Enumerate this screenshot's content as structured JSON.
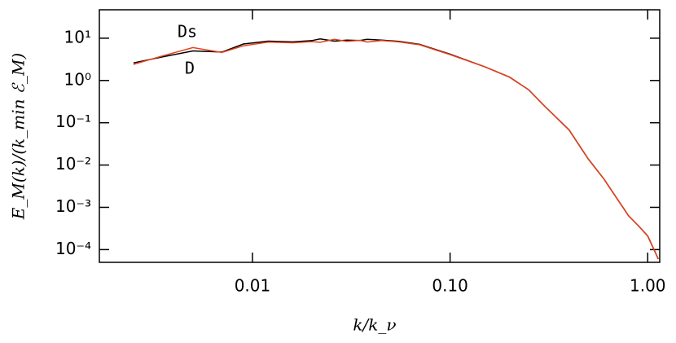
{
  "chart_data": {
    "type": "line",
    "xlabel": "k/k_ν",
    "ylabel": "E_M(k)/(k_min ℰ_M)",
    "log_x": true,
    "log_y": true,
    "xlim": [
      0.00168,
      1.15
    ],
    "ylim": [
      5e-05,
      47
    ],
    "xticks": [
      0.01,
      {
        "value": 0.1,
        "label": "0.10"
      },
      {
        "value": 1,
        "label": "1.00"
      }
    ],
    "yticks": [
      {
        "value": 10,
        "label": "10¹"
      },
      {
        "value": 1,
        "label": "10⁰"
      },
      {
        "value": 0.1,
        "label": "10⁻¹"
      },
      {
        "value": 0.01,
        "label": "10⁻²"
      },
      {
        "value": 0.001,
        "label": "10⁻³"
      },
      {
        "value": 0.0001,
        "label": "10⁻⁴"
      }
    ],
    "x": [
      0.0025,
      0.0035,
      0.005,
      0.007,
      0.009,
      0.012,
      0.016,
      0.02,
      0.022,
      0.026,
      0.03,
      0.035,
      0.038,
      0.045,
      0.055,
      0.07,
      0.1,
      0.15,
      0.2,
      0.25,
      0.3,
      0.4,
      0.5,
      0.6,
      0.7,
      0.8,
      0.9,
      1.0,
      1.1,
      1.13
    ],
    "series": [
      {
        "name": "D",
        "color": "#000000",
        "values": [
          2.6,
          3.6,
          5.0,
          4.7,
          7.3,
          8.5,
          8.2,
          8.8,
          9.6,
          8.5,
          9.0,
          8.8,
          9.4,
          9.0,
          8.4,
          7.2,
          4.2,
          2.1,
          1.2,
          0.6,
          0.25,
          0.068,
          0.014,
          0.0047,
          0.0016,
          0.00063,
          0.00036,
          0.00021,
          8e-05,
          6e-05
        ]
      },
      {
        "name": "Ds",
        "color": "#e8401c",
        "values": [
          2.4,
          3.8,
          6.0,
          4.6,
          6.6,
          8.1,
          7.8,
          8.3,
          8.0,
          9.4,
          8.4,
          8.9,
          8.1,
          8.8,
          8.2,
          7.0,
          4.1,
          2.1,
          1.2,
          0.6,
          0.25,
          0.068,
          0.014,
          0.0047,
          0.0016,
          0.00063,
          0.00036,
          0.00021,
          8e-05,
          6e-05
        ]
      }
    ]
  }
}
